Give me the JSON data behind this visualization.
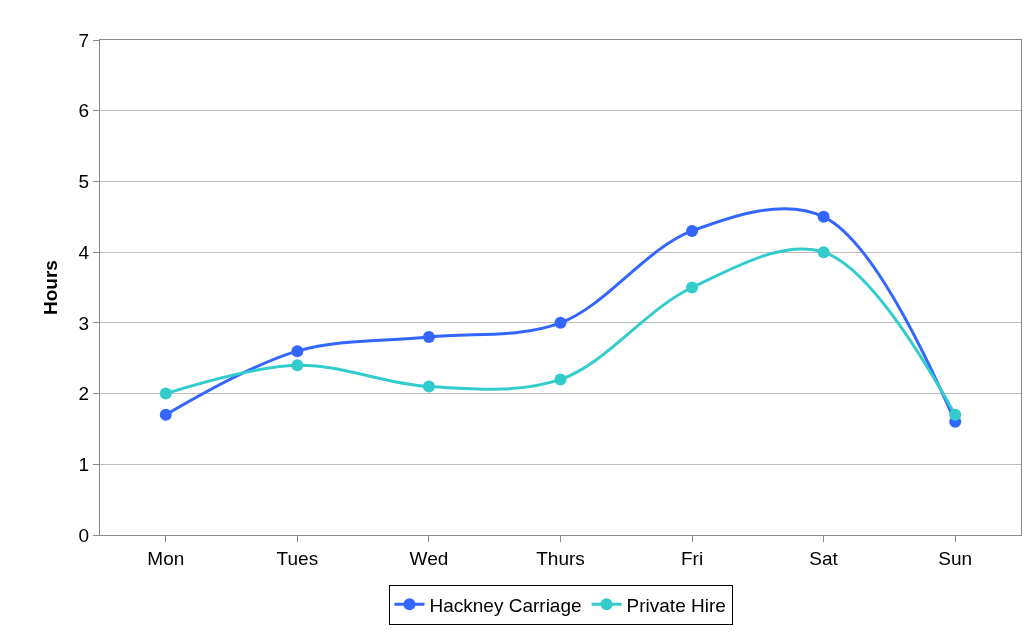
{
  "chart_data": {
    "type": "line",
    "ylabel": "Hours",
    "categories": [
      "Mon",
      "Tues",
      "Wed",
      "Thurs",
      "Fri",
      "Sat",
      "Sun"
    ],
    "series": [
      {
        "name": "Hackney Carriage",
        "color": "#3366ff",
        "values": [
          1.7,
          2.6,
          2.8,
          3.0,
          4.3,
          4.5,
          1.6
        ]
      },
      {
        "name": "Private Hire",
        "color": "#33cccc",
        "values": [
          2.0,
          2.4,
          2.1,
          2.2,
          3.5,
          4.0,
          1.7
        ]
      }
    ],
    "ylim": [
      0,
      7
    ],
    "yticks": [
      0,
      1,
      2,
      3,
      4,
      5,
      6,
      7
    ],
    "grid": "y",
    "legend": "bottom",
    "marker": "circle",
    "line_style": "solid"
  }
}
